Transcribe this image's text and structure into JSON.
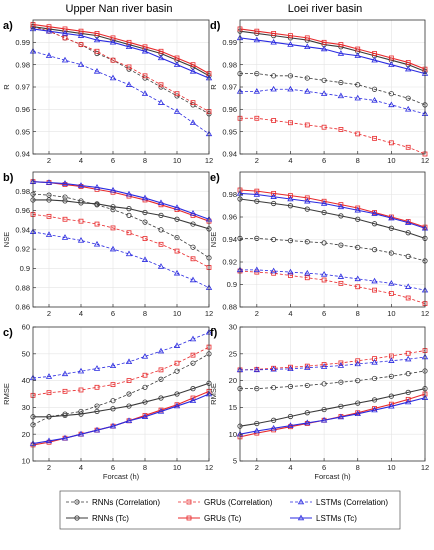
{
  "titles": {
    "left": "Upper Nan river basin",
    "right": "Loei river basin"
  },
  "legend": {
    "items": [
      {
        "label": "RNNs (Correlation)",
        "model": "rnn",
        "dashed": true
      },
      {
        "label": "GRUs (Correlation)",
        "model": "gru",
        "dashed": true
      },
      {
        "label": "LSTMs (Correlation)",
        "model": "lstm",
        "dashed": true
      },
      {
        "label": "RNNs (Tc)",
        "model": "rnn",
        "dashed": false
      },
      {
        "label": "GRUs (Tc)",
        "model": "gru",
        "dashed": false
      },
      {
        "label": "LSTMs (Tc)",
        "model": "lstm",
        "dashed": false
      }
    ]
  },
  "colors": {
    "rnn": "#3a3a3a",
    "gru": "#e8292b",
    "lstm": "#2a2ae0",
    "grid": "#e4e4e4"
  },
  "markers": {
    "rnn": "circle",
    "gru": "square",
    "lstm": "triangle"
  },
  "chart_data": [
    {
      "type": "line",
      "panel": "a)",
      "basin": "Upper Nan river basin",
      "xlabel": "",
      "ylabel": "R",
      "xlim": [
        1,
        12
      ],
      "ylim": [
        0.94,
        1.0
      ],
      "xticks": [
        2,
        4,
        6,
        8,
        10,
        12
      ],
      "yticks": [
        0.94,
        0.95,
        0.96,
        0.97,
        0.98,
        0.99
      ],
      "x": [
        1,
        2,
        3,
        4,
        5,
        6,
        7,
        8,
        9,
        10,
        11,
        12
      ],
      "series": [
        {
          "model": "rnn",
          "dashed": true,
          "values": [
            0.997,
            0.995,
            0.992,
            0.989,
            0.985,
            0.982,
            0.978,
            0.974,
            0.97,
            0.966,
            0.962,
            0.958
          ]
        },
        {
          "model": "gru",
          "dashed": true,
          "values": [
            0.997,
            0.995,
            0.992,
            0.989,
            0.986,
            0.982,
            0.979,
            0.975,
            0.971,
            0.967,
            0.963,
            0.959
          ]
        },
        {
          "model": "lstm",
          "dashed": true,
          "values": [
            0.986,
            0.984,
            0.982,
            0.98,
            0.977,
            0.974,
            0.971,
            0.967,
            0.963,
            0.959,
            0.954,
            0.949
          ]
        },
        {
          "model": "rnn",
          "dashed": false,
          "values": [
            0.997,
            0.996,
            0.995,
            0.994,
            0.993,
            0.991,
            0.989,
            0.987,
            0.985,
            0.982,
            0.979,
            0.975
          ]
        },
        {
          "model": "gru",
          "dashed": false,
          "values": [
            0.998,
            0.997,
            0.996,
            0.995,
            0.994,
            0.992,
            0.99,
            0.988,
            0.986,
            0.983,
            0.98,
            0.976
          ]
        },
        {
          "model": "lstm",
          "dashed": false,
          "values": [
            0.996,
            0.995,
            0.994,
            0.993,
            0.991,
            0.99,
            0.988,
            0.986,
            0.983,
            0.98,
            0.977,
            0.974
          ]
        }
      ]
    },
    {
      "type": "line",
      "panel": "d)",
      "basin": "Loei river basin",
      "xlabel": "",
      "ylabel": "R",
      "xlim": [
        1,
        12
      ],
      "ylim": [
        0.94,
        1.0
      ],
      "xticks": [
        2,
        4,
        6,
        8,
        10,
        12
      ],
      "yticks": [
        0.94,
        0.95,
        0.96,
        0.97,
        0.98,
        0.99
      ],
      "x": [
        1,
        2,
        3,
        4,
        5,
        6,
        7,
        8,
        9,
        10,
        11,
        12
      ],
      "series": [
        {
          "model": "rnn",
          "dashed": true,
          "values": [
            0.976,
            0.976,
            0.975,
            0.975,
            0.974,
            0.973,
            0.972,
            0.971,
            0.969,
            0.967,
            0.965,
            0.962
          ]
        },
        {
          "model": "gru",
          "dashed": true,
          "values": [
            0.956,
            0.956,
            0.955,
            0.954,
            0.953,
            0.952,
            0.951,
            0.949,
            0.947,
            0.945,
            0.943,
            0.94
          ]
        },
        {
          "model": "lstm",
          "dashed": true,
          "values": [
            0.968,
            0.968,
            0.969,
            0.969,
            0.968,
            0.967,
            0.966,
            0.965,
            0.964,
            0.962,
            0.96,
            0.958
          ]
        },
        {
          "model": "rnn",
          "dashed": false,
          "values": [
            0.995,
            0.994,
            0.993,
            0.992,
            0.991,
            0.989,
            0.988,
            0.986,
            0.984,
            0.982,
            0.98,
            0.977
          ]
        },
        {
          "model": "gru",
          "dashed": false,
          "values": [
            0.996,
            0.995,
            0.994,
            0.993,
            0.992,
            0.99,
            0.989,
            0.987,
            0.985,
            0.983,
            0.981,
            0.978
          ]
        },
        {
          "model": "lstm",
          "dashed": false,
          "values": [
            0.992,
            0.991,
            0.99,
            0.989,
            0.988,
            0.987,
            0.985,
            0.984,
            0.982,
            0.98,
            0.978,
            0.976
          ]
        }
      ]
    },
    {
      "type": "line",
      "panel": "b)",
      "basin": "Upper Nan river basin",
      "xlabel": "",
      "ylabel": "NSE",
      "xlim": [
        1,
        12
      ],
      "ylim": [
        0.86,
        1.0
      ],
      "xticks": [
        2,
        4,
        6,
        8,
        10,
        12
      ],
      "yticks": [
        0.86,
        0.88,
        0.9,
        0.92,
        0.94,
        0.96,
        0.98
      ],
      "x": [
        1,
        2,
        3,
        4,
        5,
        6,
        7,
        8,
        9,
        10,
        11,
        12
      ],
      "series": [
        {
          "model": "rnn",
          "dashed": true,
          "values": [
            0.977,
            0.976,
            0.974,
            0.97,
            0.966,
            0.961,
            0.955,
            0.948,
            0.94,
            0.932,
            0.922,
            0.911
          ]
        },
        {
          "model": "gru",
          "dashed": true,
          "values": [
            0.956,
            0.954,
            0.951,
            0.949,
            0.946,
            0.942,
            0.937,
            0.931,
            0.925,
            0.918,
            0.91,
            0.901
          ]
        },
        {
          "model": "lstm",
          "dashed": true,
          "values": [
            0.938,
            0.935,
            0.932,
            0.929,
            0.925,
            0.92,
            0.915,
            0.909,
            0.902,
            0.895,
            0.888,
            0.88
          ]
        },
        {
          "model": "rnn",
          "dashed": false,
          "values": [
            0.971,
            0.971,
            0.97,
            0.968,
            0.967,
            0.964,
            0.962,
            0.958,
            0.955,
            0.951,
            0.946,
            0.941
          ]
        },
        {
          "model": "gru",
          "dashed": false,
          "values": [
            0.99,
            0.989,
            0.987,
            0.985,
            0.982,
            0.979,
            0.975,
            0.971,
            0.966,
            0.961,
            0.955,
            0.949
          ]
        },
        {
          "model": "lstm",
          "dashed": false,
          "values": [
            0.99,
            0.989,
            0.988,
            0.986,
            0.984,
            0.981,
            0.977,
            0.973,
            0.968,
            0.963,
            0.957,
            0.951
          ]
        }
      ]
    },
    {
      "type": "line",
      "panel": "e)",
      "basin": "Loei river basin",
      "xlabel": "",
      "ylabel": "NSE",
      "xlim": [
        1,
        12
      ],
      "ylim": [
        0.88,
        1.0
      ],
      "xticks": [
        2,
        4,
        6,
        8,
        10,
        12
      ],
      "yticks": [
        0.88,
        0.9,
        0.92,
        0.94,
        0.96,
        0.98
      ],
      "x": [
        1,
        2,
        3,
        4,
        5,
        6,
        7,
        8,
        9,
        10,
        11,
        12
      ],
      "series": [
        {
          "model": "rnn",
          "dashed": true,
          "values": [
            0.941,
            0.941,
            0.94,
            0.939,
            0.938,
            0.937,
            0.935,
            0.933,
            0.931,
            0.928,
            0.925,
            0.921
          ]
        },
        {
          "model": "gru",
          "dashed": true,
          "values": [
            0.912,
            0.911,
            0.91,
            0.908,
            0.906,
            0.904,
            0.901,
            0.898,
            0.895,
            0.892,
            0.888,
            0.883
          ]
        },
        {
          "model": "lstm",
          "dashed": true,
          "values": [
            0.913,
            0.913,
            0.912,
            0.911,
            0.91,
            0.909,
            0.907,
            0.905,
            0.903,
            0.901,
            0.898,
            0.895
          ]
        },
        {
          "model": "rnn",
          "dashed": false,
          "values": [
            0.976,
            0.974,
            0.972,
            0.97,
            0.967,
            0.964,
            0.961,
            0.958,
            0.954,
            0.95,
            0.946,
            0.941
          ]
        },
        {
          "model": "gru",
          "dashed": false,
          "values": [
            0.984,
            0.983,
            0.981,
            0.979,
            0.977,
            0.974,
            0.971,
            0.968,
            0.964,
            0.96,
            0.956,
            0.951
          ]
        },
        {
          "model": "lstm",
          "dashed": false,
          "values": [
            0.981,
            0.98,
            0.978,
            0.976,
            0.974,
            0.972,
            0.969,
            0.966,
            0.963,
            0.959,
            0.955,
            0.95
          ]
        }
      ]
    },
    {
      "type": "line",
      "panel": "c)",
      "basin": "Upper Nan river basin",
      "xlabel": "Forcast (h)",
      "ylabel": "RMSE",
      "xlim": [
        1,
        12
      ],
      "ylim": [
        10,
        60
      ],
      "xticks": [
        2,
        4,
        6,
        8,
        10,
        12
      ],
      "yticks": [
        10,
        20,
        30,
        40,
        50,
        60
      ],
      "x": [
        1,
        2,
        3,
        4,
        5,
        6,
        7,
        8,
        9,
        10,
        11,
        12
      ],
      "series": [
        {
          "model": "rnn",
          "dashed": true,
          "values": [
            23.5,
            26.5,
            27.5,
            28.5,
            30.5,
            32.5,
            35.0,
            37.5,
            40.5,
            43.5,
            46.5,
            50.0
          ]
        },
        {
          "model": "gru",
          "dashed": true,
          "values": [
            34.5,
            35.5,
            36.0,
            36.5,
            37.5,
            38.5,
            40.0,
            42.0,
            44.0,
            46.5,
            49.5,
            52.5
          ]
        },
        {
          "model": "lstm",
          "dashed": true,
          "values": [
            41.0,
            41.5,
            42.5,
            43.5,
            44.5,
            45.5,
            47.0,
            49.0,
            51.0,
            53.0,
            55.5,
            58.0
          ]
        },
        {
          "model": "rnn",
          "dashed": false,
          "values": [
            26.5,
            26.5,
            27.0,
            27.5,
            28.5,
            29.5,
            30.5,
            32.0,
            33.5,
            35.0,
            37.0,
            39.0
          ]
        },
        {
          "model": "gru",
          "dashed": false,
          "values": [
            16.0,
            17.0,
            18.5,
            20.0,
            21.5,
            23.0,
            25.0,
            27.0,
            29.0,
            31.0,
            33.5,
            36.0
          ]
        },
        {
          "model": "lstm",
          "dashed": false,
          "values": [
            16.5,
            17.5,
            18.5,
            20.0,
            21.5,
            23.0,
            25.0,
            26.5,
            28.5,
            30.5,
            32.5,
            35.0
          ]
        }
      ]
    },
    {
      "type": "line",
      "panel": "f)",
      "basin": "Loei river basin",
      "xlabel": "Forcast (h)",
      "ylabel": "RMSE",
      "xlim": [
        1,
        12
      ],
      "ylim": [
        5,
        30
      ],
      "xticks": [
        2,
        4,
        6,
        8,
        10,
        12
      ],
      "yticks": [
        5,
        10,
        15,
        20,
        25,
        30
      ],
      "x": [
        1,
        2,
        3,
        4,
        5,
        6,
        7,
        8,
        9,
        10,
        11,
        12
      ],
      "series": [
        {
          "model": "rnn",
          "dashed": true,
          "values": [
            18.5,
            18.5,
            18.7,
            18.9,
            19.1,
            19.4,
            19.7,
            20.0,
            20.4,
            20.8,
            21.3,
            21.8
          ]
        },
        {
          "model": "gru",
          "dashed": true,
          "values": [
            22.0,
            22.1,
            22.3,
            22.5,
            22.7,
            23.0,
            23.3,
            23.7,
            24.1,
            24.6,
            25.1,
            25.6
          ]
        },
        {
          "model": "lstm",
          "dashed": true,
          "values": [
            22.0,
            22.0,
            22.1,
            22.2,
            22.4,
            22.6,
            22.8,
            23.1,
            23.4,
            23.7,
            24.0,
            24.4
          ]
        },
        {
          "model": "rnn",
          "dashed": false,
          "values": [
            11.5,
            12.0,
            12.6,
            13.3,
            14.0,
            14.6,
            15.2,
            15.8,
            16.4,
            17.1,
            17.8,
            18.5
          ]
        },
        {
          "model": "gru",
          "dashed": false,
          "values": [
            9.5,
            10.2,
            10.8,
            11.4,
            12.0,
            12.6,
            13.3,
            14.0,
            14.8,
            15.6,
            16.5,
            17.5
          ]
        },
        {
          "model": "lstm",
          "dashed": false,
          "values": [
            10.0,
            10.6,
            11.1,
            11.6,
            12.1,
            12.6,
            13.2,
            13.8,
            14.5,
            15.2,
            16.0,
            16.8
          ]
        }
      ]
    }
  ]
}
